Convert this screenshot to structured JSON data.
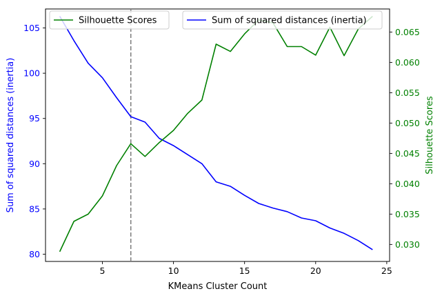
{
  "chart_data": {
    "type": "line",
    "x": [
      2,
      3,
      4,
      5,
      6,
      7,
      8,
      9,
      10,
      11,
      12,
      13,
      14,
      15,
      16,
      17,
      18,
      19,
      20,
      21,
      22,
      23,
      24
    ],
    "xlabel": "KMeans Cluster Count",
    "xlim": [
      1,
      25.2
    ],
    "xticks": [
      5,
      10,
      15,
      20,
      25
    ],
    "vline": {
      "x": 7,
      "style": "dashed",
      "color": "#808080"
    },
    "left_axis": {
      "label": "Sum of squared distances (inertia)",
      "color": "#0000ff",
      "lim": [
        79.2,
        107.1
      ],
      "ticks": [
        80,
        85,
        90,
        95,
        100,
        105
      ]
    },
    "right_axis": {
      "label": "Silhouette Scores",
      "color": "#008000",
      "lim": [
        0.0272,
        0.0688
      ],
      "ticks": [
        0.03,
        0.035,
        0.04,
        0.045,
        0.05,
        0.055,
        0.06,
        0.065
      ],
      "tick_labels": [
        "0.030",
        "0.035",
        "0.040",
        "0.045",
        "0.050",
        "0.055",
        "0.060",
        "0.065"
      ]
    },
    "series": [
      {
        "name": "Sum of squared distances (inertia)",
        "axis": "left",
        "color": "#0000ff",
        "values": [
          106.3,
          103.6,
          101.1,
          99.5,
          97.3,
          95.2,
          94.6,
          92.8,
          92.0,
          91.0,
          90.0,
          88.0,
          87.5,
          86.5,
          85.6,
          85.1,
          84.7,
          84.0,
          83.7,
          82.9,
          82.3,
          81.5,
          80.5
        ]
      },
      {
        "name": "Silhouette Scores",
        "axis": "right",
        "color": "#008000",
        "values": [
          0.0288,
          0.0338,
          0.035,
          0.038,
          0.043,
          0.0466,
          0.0445,
          0.0468,
          0.0488,
          0.0516,
          0.0538,
          0.063,
          0.0618,
          0.0647,
          0.067,
          0.0665,
          0.0626,
          0.0626,
          0.0612,
          0.0658,
          0.0611,
          0.0655,
          0.0676
        ]
      }
    ],
    "legends": [
      {
        "placement": "upper-left",
        "entries": [
          "Silhouette Scores"
        ]
      },
      {
        "placement": "upper-right",
        "entries": [
          "Sum of squared distances (inertia)"
        ]
      }
    ]
  }
}
